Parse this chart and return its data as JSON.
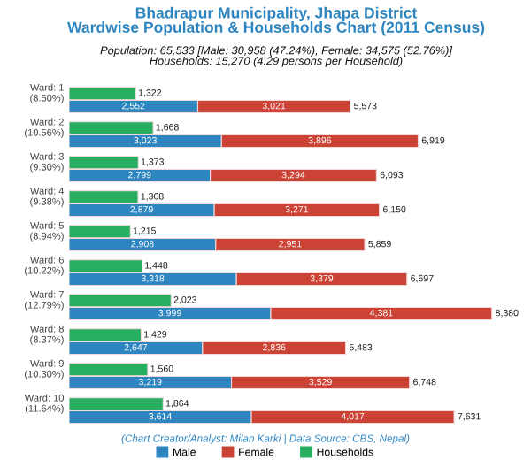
{
  "chart_data": [
    {
      "type": "bar",
      "orientation": "horizontal",
      "title": "Bhadrapur Municipality, Jhapa District\nWardwise Population & Households Chart (2011 Census)",
      "subtitle": "Population: 65,533 [Male: 30,958 (47.24%), Female: 34,575 (52.76%)]\nHouseholds: 15,270 (4.29 persons per Household)",
      "categories": [
        "Ward: 1\n(8.50%)",
        "Ward: 2\n(10.56%)",
        "Ward: 3\n(9.30%)",
        "Ward: 4\n(9.38%)",
        "Ward: 5\n(8.94%)",
        "Ward: 6\n(10.22%)",
        "Ward: 7\n(12.79%)",
        "Ward: 8\n(8.37%)",
        "Ward: 9\n(10.30%)",
        "Ward: 10\n(11.64%)"
      ],
      "series": [
        {
          "name": "Households",
          "color": "#27ae60",
          "values": [
            1322,
            1668,
            1373,
            1368,
            1215,
            1448,
            2023,
            1429,
            1560,
            1864
          ],
          "value_labels": [
            "1,322",
            "1,668",
            "1,373",
            "1,368",
            "1,215",
            "1,448",
            "2,023",
            "1,429",
            "1,560",
            "1,864"
          ]
        }
      ],
      "legend": "bottom",
      "annotations": [
        "(Chart Creator/Analyst: Milan Karki | Data Source: CBS, Nepal)"
      ]
    },
    {
      "type": "bar",
      "orientation": "horizontal",
      "stacked": true,
      "categories": [
        null,
        null,
        null,
        null,
        null,
        null,
        null,
        null,
        null,
        null
      ],
      "series": [
        {
          "name": "Male",
          "color": "#2e86c1",
          "values": [
            2552,
            3023,
            2799,
            2879,
            2908,
            3318,
            3999,
            2647,
            3219,
            3614
          ],
          "value_labels": [
            "2,552",
            "3,023",
            "2,799",
            "2,879",
            "2,908",
            "3,318",
            "3,999",
            "2,647",
            "3,219",
            "3,614"
          ]
        },
        {
          "name": "Female",
          "color": "#cb4335",
          "values": [
            3021,
            3896,
            3294,
            3271,
            2951,
            3379,
            4381,
            2836,
            3529,
            4017
          ],
          "value_labels": [
            "3,021",
            "3,896",
            "3,294",
            "3,271",
            "2,951",
            "3,379",
            "4,381",
            "2,836",
            "3,529",
            "4,017"
          ]
        }
      ],
      "totals": [
        "5,573",
        "6,919",
        "6,093",
        "6,150",
        "5,859",
        "6,697",
        "8,380",
        "5,483",
        "6,748",
        "7,631"
      ],
      "legend": "bottom"
    }
  ]
}
